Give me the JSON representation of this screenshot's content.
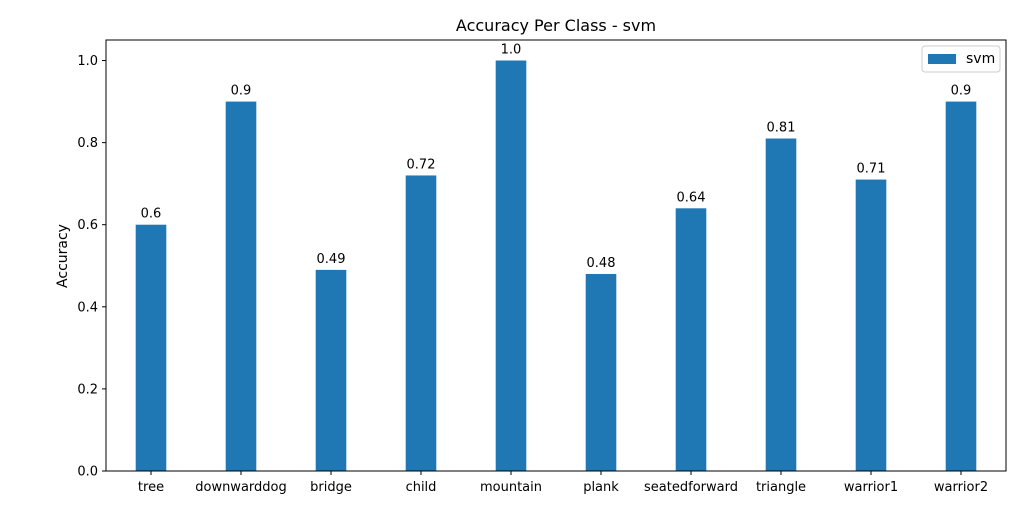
{
  "chart_data": {
    "type": "bar",
    "title": "Accuracy Per Class - svm",
    "xlabel": "",
    "ylabel": "Accuracy",
    "categories": [
      "tree",
      "downwarddog",
      "bridge",
      "child",
      "mountain",
      "plank",
      "seatedforward",
      "triangle",
      "warrior1",
      "warrior2"
    ],
    "series": [
      {
        "name": "svm",
        "values": [
          0.6,
          0.9,
          0.49,
          0.72,
          1.0,
          0.48,
          0.64,
          0.81,
          0.71,
          0.9
        ],
        "labels": [
          "0.6",
          "0.9",
          "0.49",
          "0.72",
          "1.0",
          "0.48",
          "0.64",
          "0.81",
          "0.71",
          "0.9"
        ],
        "color": "#1f77b4"
      }
    ],
    "ylim": [
      0,
      1.05
    ],
    "yticks": [
      0.0,
      0.2,
      0.4,
      0.6,
      0.8,
      1.0
    ],
    "ytick_labels": [
      "0.0",
      "0.2",
      "0.4",
      "0.6",
      "0.8",
      "1.0"
    ],
    "grid": false,
    "legend": "top-right"
  }
}
